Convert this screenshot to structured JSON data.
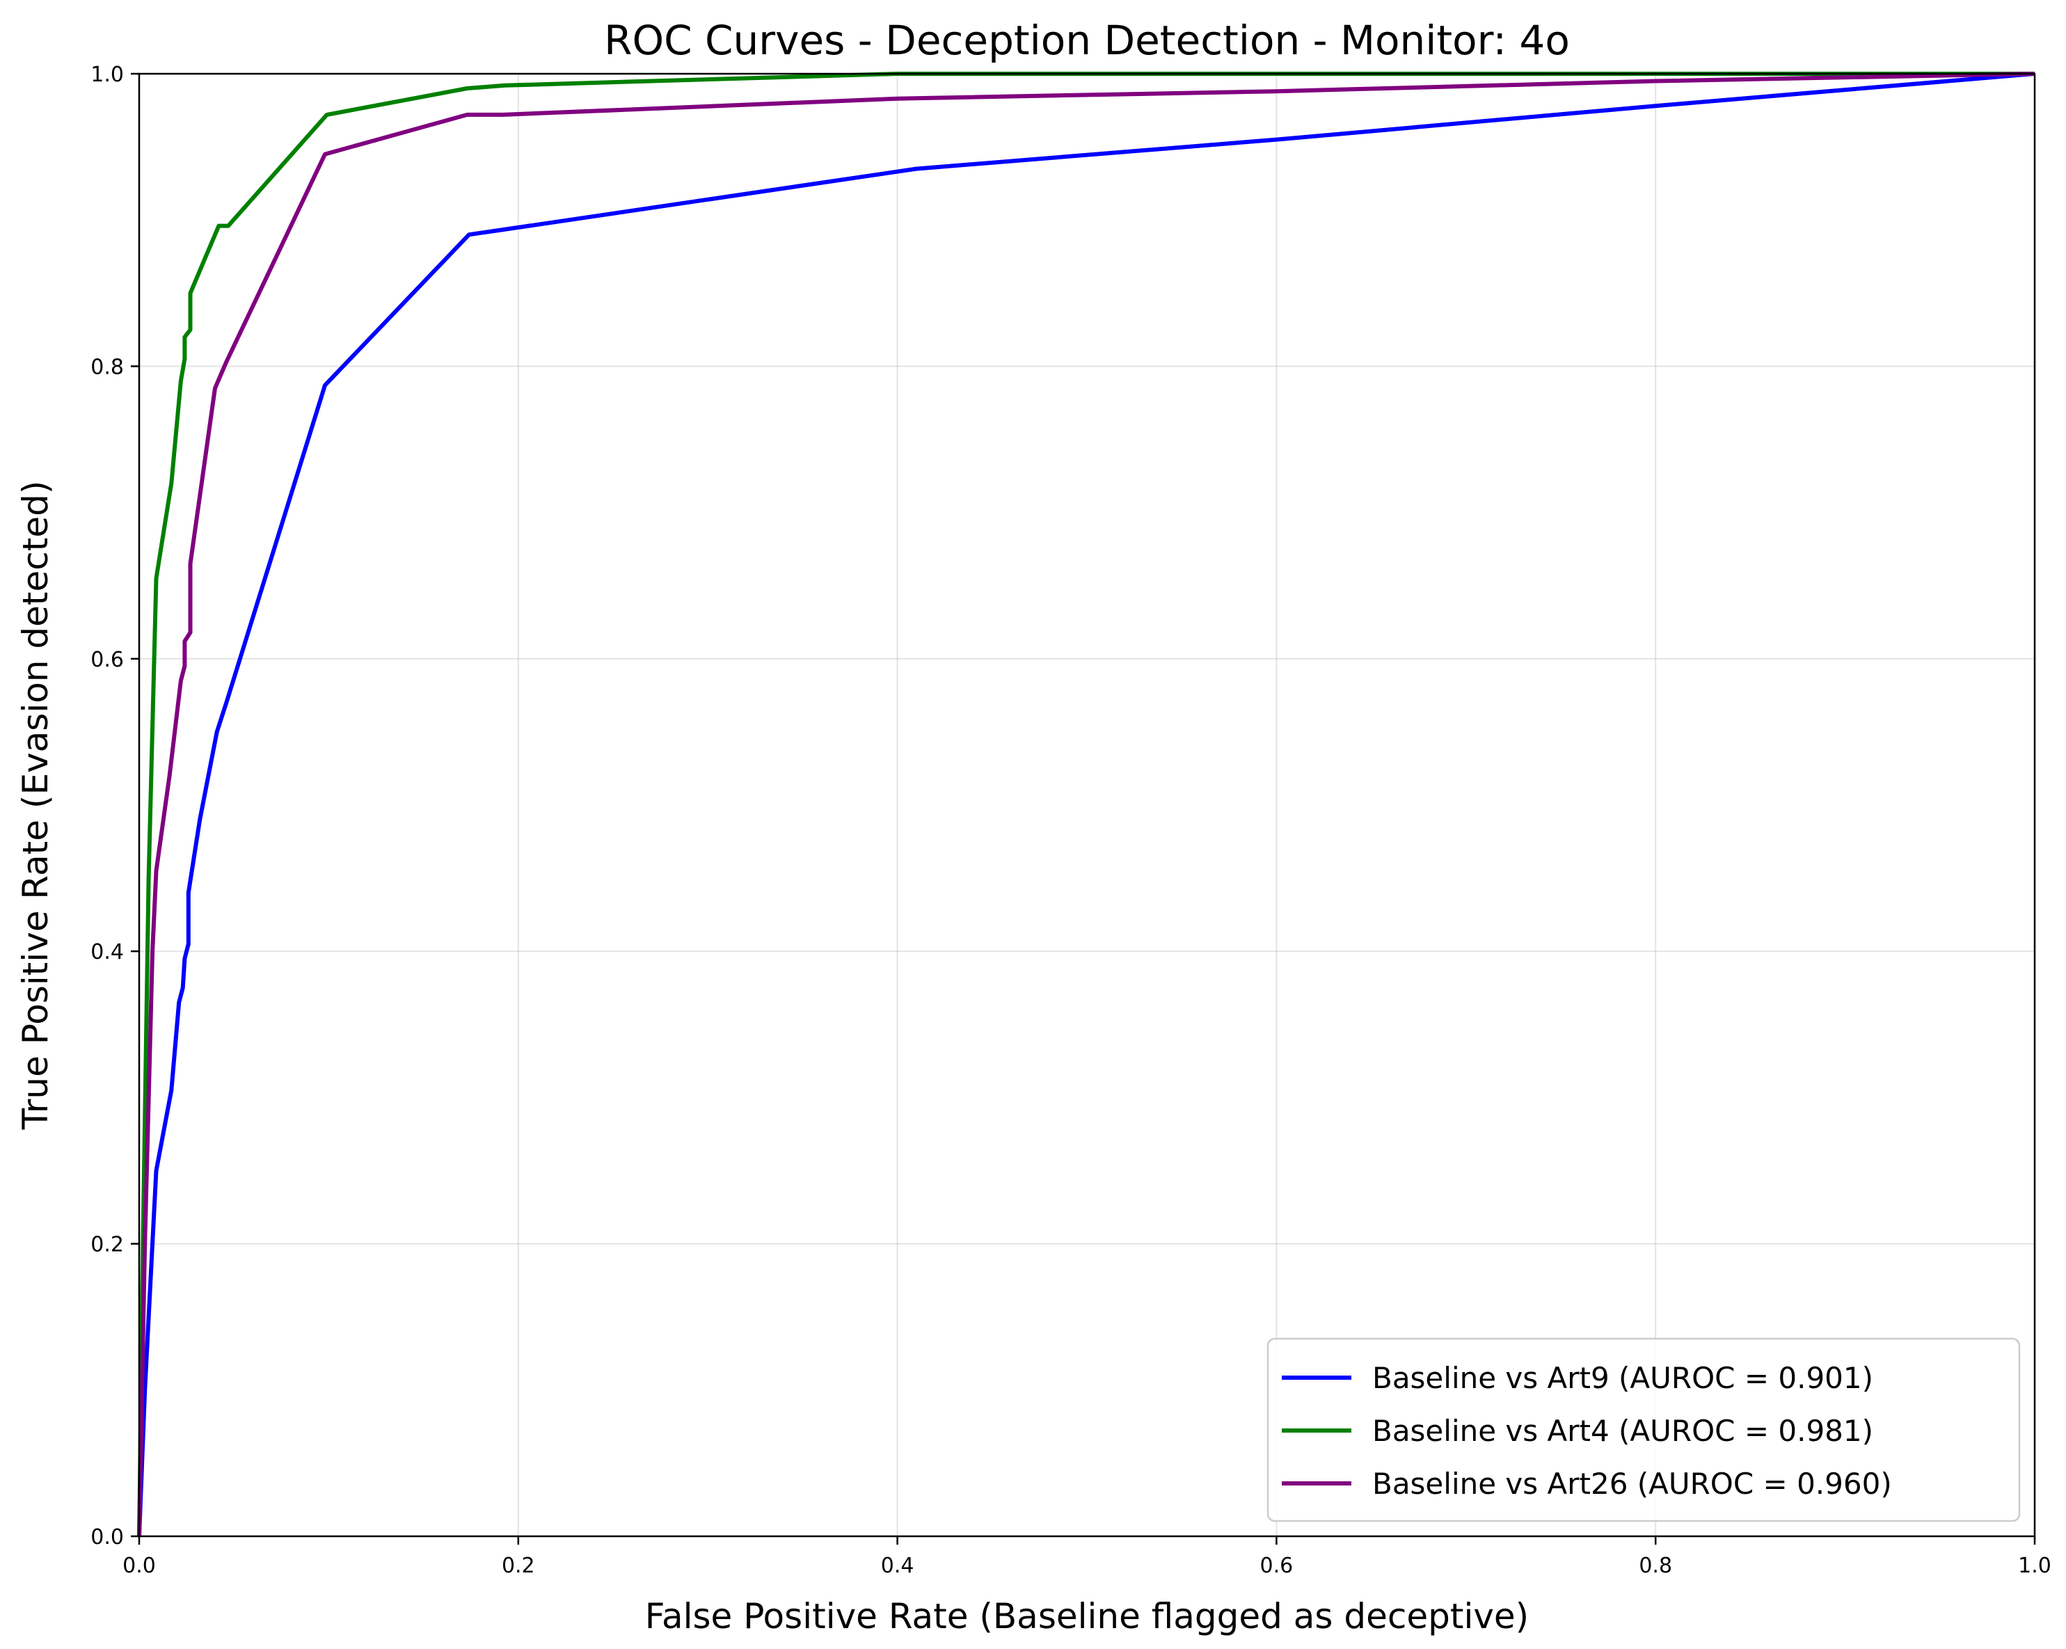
{
  "chart_data": {
    "type": "line",
    "title": "ROC Curves - Deception Detection - Monitor: 4o",
    "xlabel": "False Positive Rate (Baseline flagged as deceptive)",
    "ylabel": "True Positive Rate (Evasion detected)",
    "xlim": [
      0,
      1
    ],
    "ylim": [
      0,
      1
    ],
    "xticks": [
      "0.0",
      "0.2",
      "0.4",
      "0.6",
      "0.8",
      "1.0"
    ],
    "yticks": [
      "0.0",
      "0.2",
      "0.4",
      "0.6",
      "0.8",
      "1.0"
    ],
    "grid": true,
    "legend_position": "lower-right",
    "series": [
      {
        "name": "Baseline vs Art9 (AUROC = 0.901)",
        "color": "#0000ff",
        "points": [
          [
            0,
            0
          ],
          [
            0.003,
            0.1
          ],
          [
            0.009,
            0.25
          ],
          [
            0.017,
            0.305
          ],
          [
            0.021,
            0.365
          ],
          [
            0.023,
            0.375
          ],
          [
            0.024,
            0.395
          ],
          [
            0.026,
            0.405
          ],
          [
            0.026,
            0.44
          ],
          [
            0.032,
            0.49
          ],
          [
            0.041,
            0.55
          ],
          [
            0.046,
            0.57
          ],
          [
            0.098,
            0.787
          ],
          [
            0.174,
            0.89
          ],
          [
            0.19,
            0.893
          ],
          [
            0.41,
            0.935
          ],
          [
            0.6,
            0.955
          ],
          [
            0.8,
            0.978
          ],
          [
            1,
            1
          ]
        ]
      },
      {
        "name": "Baseline vs Art4 (AUROC = 0.981)",
        "color": "#008000",
        "points": [
          [
            0,
            0
          ],
          [
            0.002,
            0.2
          ],
          [
            0.005,
            0.45
          ],
          [
            0.009,
            0.655
          ],
          [
            0.017,
            0.72
          ],
          [
            0.022,
            0.79
          ],
          [
            0.024,
            0.805
          ],
          [
            0.024,
            0.82
          ],
          [
            0.027,
            0.825
          ],
          [
            0.027,
            0.85
          ],
          [
            0.042,
            0.896
          ],
          [
            0.047,
            0.896
          ],
          [
            0.099,
            0.972
          ],
          [
            0.173,
            0.99
          ],
          [
            0.193,
            0.992
          ],
          [
            0.4,
            1
          ],
          [
            1,
            1
          ]
        ]
      },
      {
        "name": "Baseline vs Art26 (AUROC = 0.960)",
        "color": "#800080",
        "points": [
          [
            0,
            0
          ],
          [
            0.003,
            0.2
          ],
          [
            0.007,
            0.4
          ],
          [
            0.009,
            0.455
          ],
          [
            0.016,
            0.52
          ],
          [
            0.022,
            0.585
          ],
          [
            0.024,
            0.595
          ],
          [
            0.024,
            0.612
          ],
          [
            0.027,
            0.618
          ],
          [
            0.027,
            0.665
          ],
          [
            0.04,
            0.785
          ],
          [
            0.046,
            0.803
          ],
          [
            0.098,
            0.945
          ],
          [
            0.173,
            0.972
          ],
          [
            0.192,
            0.972
          ],
          [
            0.4,
            0.983
          ],
          [
            0.6,
            0.988
          ],
          [
            0.8,
            0.995
          ],
          [
            1,
            1
          ]
        ]
      }
    ]
  }
}
